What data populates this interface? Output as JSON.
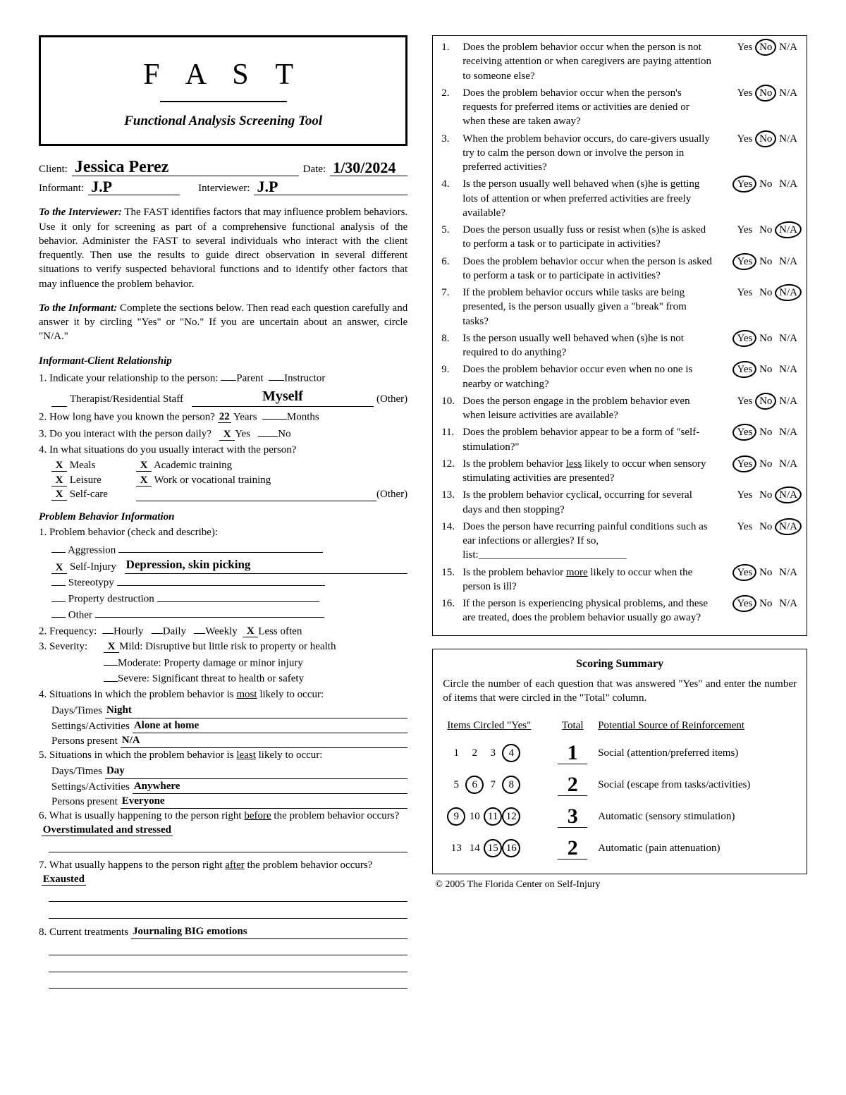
{
  "title_box": {
    "fast": "F A S T",
    "subtitle": "Functional Analysis Screening Tool"
  },
  "header_fields": {
    "client_label": "Client:",
    "client_value": "Jessica Perez",
    "date_label": "Date:",
    "date_value": "1/30/2024",
    "informant_label": "Informant:",
    "informant_value": "J.P",
    "interviewer_label": "Interviewer:",
    "interviewer_value": "J.P"
  },
  "intro": {
    "to_interviewer_label": "To the Interviewer:",
    "to_interviewer_text": " The FAST identifies factors that may influence problem behaviors. Use it only for screening as part of a comprehensive functional analysis of the behavior. Administer the FAST to several individuals who interact with the client frequently.  Then use the results to guide direct observation in several different situations to verify suspected behavioral functions and to identify other factors that may influence the problem behavior.",
    "to_informant_label": "To the Informant:",
    "to_informant_text": " Complete the sections below. Then read each question carefully and answer it by circling \"Yes\" or  \"No.\"  If you are uncertain about an answer, circle \"N/A.\""
  },
  "section1": {
    "heading": "Informant-Client Relationship",
    "q1_text": "1. Indicate your relationship to the person:",
    "q1_opts": {
      "parent": "Parent",
      "instructor": "Instructor",
      "therapist": "Therapist/Residential Staff",
      "other": "(Other)"
    },
    "q1_other_value": "Myself",
    "q2_text": "2. How long have you known the person?",
    "q2_years_value": "22",
    "q2_years_label": "Years",
    "q2_months_label": "Months",
    "q3_text": "3. Do you interact with the person daily?",
    "q3_yes": "Yes",
    "q3_no": "No",
    "q3_answer_yes_mark": "X",
    "q4_text": "4. In what situations do you usually interact with the person?",
    "q4_opts": {
      "meals": "Meals",
      "academic": "Academic training",
      "leisure": "Leisure",
      "work": "Work or vocational training",
      "selfcare": "Self-care",
      "other": "(Other)"
    },
    "q4_marks": {
      "meals": "X",
      "academic": "X",
      "leisure": "X",
      "work": "X",
      "selfcare": "X"
    }
  },
  "section2": {
    "heading": "Problem Behavior Information",
    "q1_text": "1. Problem behavior (check and describe):",
    "q1_opts": {
      "aggression": "Aggression",
      "selfinjury": "Self-Injury",
      "stereotypy": "Stereotypy",
      "property": "Property destruction",
      "other": "Other"
    },
    "q1_selfinjury_mark": "X",
    "q1_selfinjury_desc": "Depression, skin picking",
    "q2_text": "2. Frequency:",
    "q2_opts": {
      "hourly": "Hourly",
      "daily": "Daily",
      "weekly": "Weekly",
      "less": "Less often"
    },
    "q2_less_mark": "X",
    "q3_text": "3. Severity:",
    "q3_opts": {
      "mild": "Mild: Disruptive but little risk to property or health",
      "moderate": "Moderate: Property damage or minor injury",
      "severe": "Severe: Significant threat to health or safety"
    },
    "q3_mild_mark": "X",
    "q4_text": "4. Situations in which the problem behavior is ",
    "q4_most": "most",
    "q4_tail": " likely to occur:",
    "q4_days_label": "Days/Times",
    "q4_days_val": "Night",
    "q4_settings_label": "Settings/Activities",
    "q4_settings_val": "Alone at home",
    "q4_persons_label": "Persons present",
    "q4_persons_val": "N/A",
    "q5_text": "5. Situations in which the problem behavior is ",
    "q5_least": "least",
    "q5_tail": " likely to occur:",
    "q5_days_val": "Day",
    "q5_settings_val": "Anywhere",
    "q5_persons_val": "Everyone",
    "q6_text": "6. What is usually happening to the person right ",
    "q6_before": "before",
    "q6_tail": " the problem behavior occurs?",
    "q6_val": "Overstimulated  and  stressed",
    "q7_text": "7. What usually happens to the person right ",
    "q7_after": "after",
    "q7_tail": " the problem behavior occurs?",
    "q7_val": "Exausted",
    "q8_text": "8. Current treatments",
    "q8_val": "Journaling  BIG  emotions"
  },
  "questions": [
    {
      "n": "1.",
      "t": "Does the problem behavior occur when the person is not receiving attention or when caregivers are paying attention to someone else?",
      "a": "No"
    },
    {
      "n": "2.",
      "t": "Does the problem behavior occur when the person's requests for preferred items or activities are denied or when these are taken away?",
      "a": "No"
    },
    {
      "n": "3.",
      "t": "When the problem behavior occurs, do care-givers usually try to calm the person down or involve the person in preferred activities?",
      "a": "No"
    },
    {
      "n": "4.",
      "t": "Is the person usually well behaved when (s)he is getting lots of attention or when preferred activities are freely available?",
      "a": "Yes"
    },
    {
      "n": "5.",
      "t": "Does the person usually fuss or resist when (s)he is asked to perform a task or to participate in activities?",
      "a": "N/A"
    },
    {
      "n": "6.",
      "t": "Does the problem behavior occur when the person is asked to perform a task or to participate in activities?",
      "a": "Yes"
    },
    {
      "n": "7.",
      "t": "If the problem behavior occurs while tasks are being presented, is the person usually given a \"break\" from tasks?",
      "a": "N/A"
    },
    {
      "n": "8.",
      "t": "Is the person usually well behaved when (s)he is not required to do anything?",
      "a": "Yes"
    },
    {
      "n": "9.",
      "t": "Does the problem behavior occur even when no one is nearby or watching?",
      "a": "Yes"
    },
    {
      "n": "10.",
      "t": "Does the person engage in the problem behavior even when leisure activities are available?",
      "a": "No"
    },
    {
      "n": "11.",
      "t": "Does the problem behavior appear to be a form of \"self-stimulation?\"",
      "a": "Yes"
    },
    {
      "n": "12.",
      "t": "Is the problem behavior <u>less</u> likely to occur when sensory stimulating activities are presented?",
      "a": "Yes"
    },
    {
      "n": "13.",
      "t": "Is the problem behavior cyclical, occurring for several days and then stopping?",
      "a": "N/A"
    },
    {
      "n": "14.",
      "t": "Does the person have recurring painful conditions such as ear infections or allergies? If so, list:____________________________",
      "a": "N/A"
    },
    {
      "n": "15.",
      "t": "Is the problem behavior <u>more</u> likely to occur when the person is ill?",
      "a": "Yes"
    },
    {
      "n": "16.",
      "t": "If the person is experiencing physical problems, and these are treated, does the problem behavior usually go away?",
      "a": "Yes"
    }
  ],
  "opts": {
    "yes": "Yes",
    "no": "No",
    "na": "N/A"
  },
  "scoring": {
    "title": "Scoring Summary",
    "instructions": "Circle the number of each question that was answered \"Yes\" and enter the number of items that were circled in the \"Total\" column.",
    "col_items": "Items Circled \"Yes\"",
    "col_total": "Total",
    "col_source": "Potential Source of Reinforcement",
    "rows": [
      {
        "nums": [
          {
            "n": "1",
            "c": false
          },
          {
            "n": "2",
            "c": false
          },
          {
            "n": "3",
            "c": false
          },
          {
            "n": "4",
            "c": true
          }
        ],
        "total": "1",
        "src": "Social  (attention/preferred items)"
      },
      {
        "nums": [
          {
            "n": "5",
            "c": false
          },
          {
            "n": "6",
            "c": true
          },
          {
            "n": "7",
            "c": false
          },
          {
            "n": "8",
            "c": true
          }
        ],
        "total": "2",
        "src": "Social  (escape from tasks/activities)"
      },
      {
        "nums": [
          {
            "n": "9",
            "c": true
          },
          {
            "n": "10",
            "c": false
          },
          {
            "n": "11",
            "c": true
          },
          {
            "n": "12",
            "c": true
          }
        ],
        "total": "3",
        "src": "Automatic  (sensory stimulation)"
      },
      {
        "nums": [
          {
            "n": "13",
            "c": false
          },
          {
            "n": "14",
            "c": false
          },
          {
            "n": "15",
            "c": true
          },
          {
            "n": "16",
            "c": true
          }
        ],
        "total": "2",
        "src": "Automatic  (pain attenuation)"
      }
    ]
  },
  "copyright": "© 2005 The Florida Center on Self-Injury"
}
